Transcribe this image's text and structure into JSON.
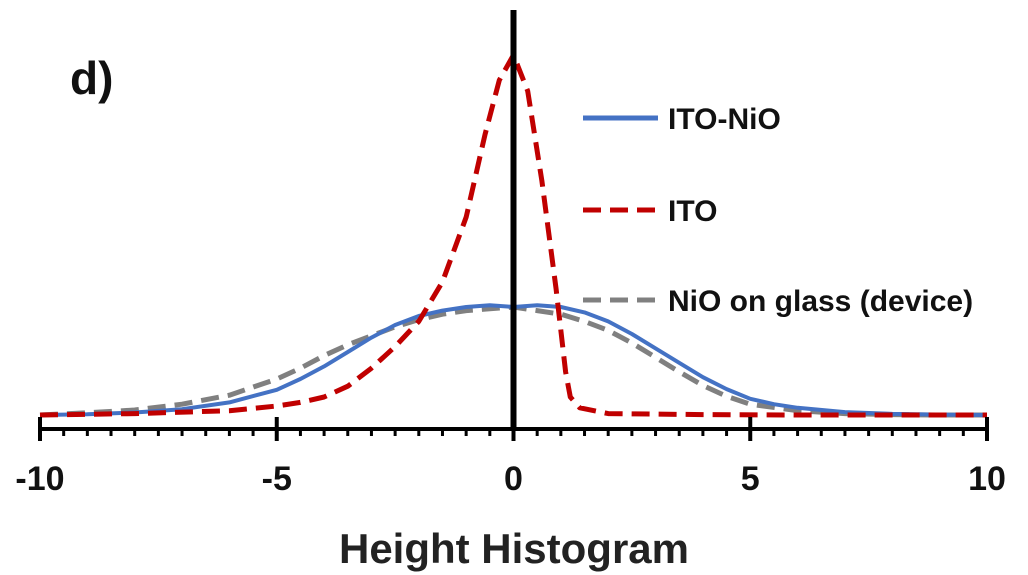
{
  "chart_data": {
    "type": "line",
    "panel_label": "d)",
    "title": "",
    "xlabel": "Height Histogram",
    "ylabel": "",
    "xlim": [
      -10,
      10
    ],
    "ylim": [
      0,
      1
    ],
    "x_ticks": [
      -10,
      -5,
      0,
      5,
      10
    ],
    "x_tick_labels": [
      "-10",
      "-5",
      "0",
      "5",
      "10"
    ],
    "minor_tick_step": 0.5,
    "grid": false,
    "legend_position": "right",
    "series": [
      {
        "name": "ITO-NiO",
        "color": "#4472c4",
        "style": "solid",
        "x": [
          -10,
          -9,
          -8,
          -7,
          -6,
          -5,
          -4.5,
          -4,
          -3.5,
          -3,
          -2.5,
          -2,
          -1.5,
          -1,
          -0.5,
          0,
          0.5,
          1,
          1.5,
          2,
          2.5,
          3,
          3.5,
          4,
          4.5,
          5,
          5.5,
          6,
          7,
          8,
          9,
          10
        ],
        "y": [
          0.0,
          0.002,
          0.007,
          0.016,
          0.035,
          0.07,
          0.1,
          0.135,
          0.175,
          0.215,
          0.25,
          0.275,
          0.29,
          0.3,
          0.305,
          0.3,
          0.305,
          0.3,
          0.285,
          0.26,
          0.225,
          0.185,
          0.145,
          0.105,
          0.072,
          0.045,
          0.03,
          0.02,
          0.008,
          0.003,
          0.001,
          0.0
        ]
      },
      {
        "name": "ITO",
        "color": "#c00000",
        "style": "dashed",
        "x": [
          -10,
          -8,
          -6,
          -5,
          -4.5,
          -4,
          -3.5,
          -3,
          -2.5,
          -2,
          -1.5,
          -1,
          -0.6,
          -0.3,
          0,
          0.3,
          0.6,
          0.9,
          1.1,
          1.2,
          1.4,
          2,
          4,
          6,
          8,
          10
        ],
        "y": [
          0.0,
          0.004,
          0.012,
          0.025,
          0.035,
          0.05,
          0.08,
          0.13,
          0.19,
          0.26,
          0.37,
          0.55,
          0.78,
          0.93,
          1.0,
          0.9,
          0.65,
          0.35,
          0.12,
          0.05,
          0.02,
          0.004,
          0.001,
          0.0,
          0.0,
          0.0
        ]
      },
      {
        "name": "NiO on glass (device)",
        "color": "#808080",
        "style": "dashed",
        "x": [
          -10,
          -9,
          -8,
          -7,
          -6,
          -5,
          -4.5,
          -4,
          -3.5,
          -3,
          -2.5,
          -2,
          -1.5,
          -1,
          -0.5,
          0,
          0.5,
          1,
          1.5,
          2,
          2.5,
          3,
          3.5,
          4,
          4.5,
          5,
          6,
          7,
          8,
          9,
          10
        ],
        "y": [
          0.0,
          0.006,
          0.014,
          0.03,
          0.055,
          0.1,
          0.13,
          0.165,
          0.195,
          0.22,
          0.245,
          0.265,
          0.28,
          0.29,
          0.295,
          0.3,
          0.29,
          0.28,
          0.26,
          0.235,
          0.2,
          0.16,
          0.12,
          0.082,
          0.052,
          0.03,
          0.012,
          0.004,
          0.001,
          0.0,
          0.0
        ]
      }
    ]
  }
}
